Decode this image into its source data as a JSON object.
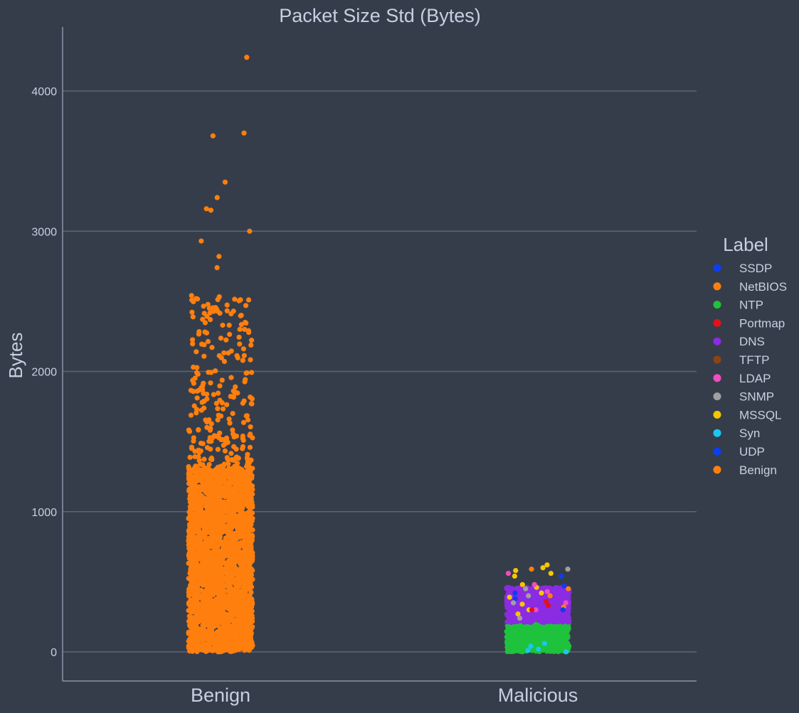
{
  "chart_data": {
    "type": "scatter",
    "title": "Packet Size Std (Bytes)",
    "xlabel": "",
    "ylabel": "Bytes",
    "categories": [
      "Benign",
      "Malicious"
    ],
    "ylim": [
      -210,
      4450
    ],
    "yticks": [
      0,
      1000,
      2000,
      3000,
      4000
    ],
    "grid": true,
    "legend": {
      "title": "Label",
      "placement": "right",
      "items": [
        {
          "label": "SSDP",
          "color": "#0a3ff0"
        },
        {
          "label": "NetBIOS",
          "color": "#ff7f0e"
        },
        {
          "label": "NTP",
          "color": "#1ec23c"
        },
        {
          "label": "Portmap",
          "color": "#e0121c"
        },
        {
          "label": "DNS",
          "color": "#8b2be2"
        },
        {
          "label": "TFTP",
          "color": "#8b4513"
        },
        {
          "label": "LDAP",
          "color": "#f04dc0"
        },
        {
          "label": "SNMP",
          "color": "#a0a0a0"
        },
        {
          "label": "MSSQL",
          "color": "#f7c600"
        },
        {
          "label": "Syn",
          "color": "#19c8ee"
        },
        {
          "label": "UDP",
          "color": "#0a3ff0"
        },
        {
          "label": "Benign",
          "color": "#ff7f0e"
        }
      ]
    },
    "series": [
      {
        "category": "Benign",
        "label": "Benign",
        "dense_range": [
          0,
          1300
        ],
        "sparse_range": [
          1300,
          2550
        ],
        "outliers": [
          4240,
          3700,
          3680,
          3350,
          3240,
          3160,
          3150,
          3000,
          2930,
          2820,
          2740,
          2510,
          2470,
          2450,
          2430,
          2400,
          2370,
          2350,
          2300
        ]
      },
      {
        "category": "Malicious",
        "label": "NTP",
        "dense_range": [
          0,
          210
        ]
      },
      {
        "category": "Malicious",
        "label": "DNS",
        "dense_range": [
          210,
          460
        ]
      },
      {
        "category": "Malicious",
        "label": "MSSQL",
        "points": [
          620,
          600,
          580,
          560,
          540,
          480,
          460,
          420,
          390,
          340,
          300,
          270
        ]
      },
      {
        "category": "Malicious",
        "label": "LDAP",
        "points": [
          560,
          480,
          430,
          350,
          300
        ]
      },
      {
        "category": "Malicious",
        "label": "Benign",
        "points": [
          590,
          450,
          400,
          320
        ]
      },
      {
        "category": "Malicious",
        "label": "Portmap",
        "points": [
          360,
          330,
          300
        ]
      },
      {
        "category": "Malicious",
        "label": "SSDP",
        "points": [
          540,
          470,
          420,
          380,
          300
        ]
      },
      {
        "category": "Malicious",
        "label": "SNMP",
        "points": [
          590,
          450,
          400,
          350,
          240
        ]
      },
      {
        "category": "Malicious",
        "label": "Syn",
        "points": [
          60,
          40,
          20,
          10,
          0
        ]
      }
    ]
  }
}
